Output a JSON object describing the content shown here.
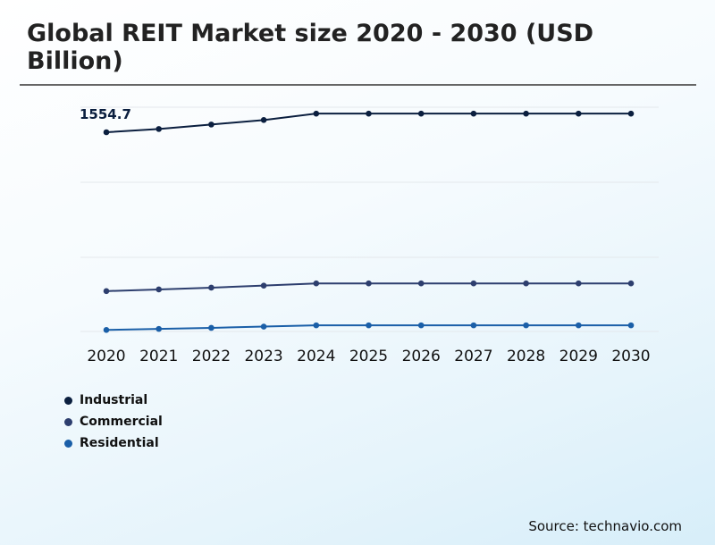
{
  "chart_data": {
    "type": "line",
    "title": "Global REIT Market size 2020 - 2030 (USD Billion)",
    "x": [
      "2020",
      "2021",
      "2022",
      "2023",
      "2024",
      "2025",
      "2026",
      "2027",
      "2028",
      "2029",
      "2030"
    ],
    "series": [
      {
        "name": "Industrial",
        "color": "#0b1f3f",
        "values": [
          1554.7,
          1580,
          1615,
          1650,
          1700,
          1700,
          1700,
          1700,
          1700,
          1700,
          1700
        ]
      },
      {
        "name": "Commercial",
        "color": "#2d3e6e",
        "values": [
          315,
          328,
          342,
          358,
          375,
          375,
          375,
          375,
          375,
          375,
          375
        ]
      },
      {
        "name": "Residential",
        "color": "#1a5fa8",
        "values": [
          12,
          20,
          28,
          38,
          48,
          48,
          48,
          48,
          48,
          48,
          48
        ]
      }
    ],
    "annotation": "1554.7",
    "ylim": [
      0,
      1750
    ],
    "grid": true,
    "legend_position": "bottom-left"
  },
  "source": "Source: technavio.com"
}
